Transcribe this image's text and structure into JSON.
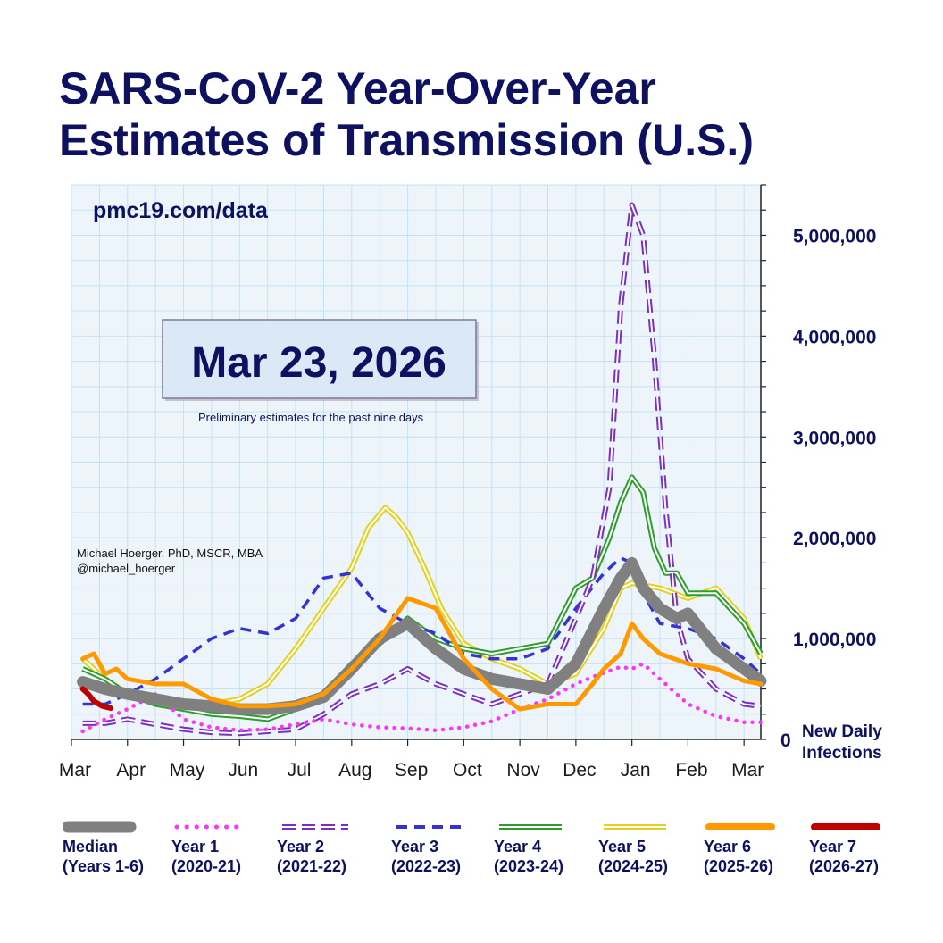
{
  "title": {
    "line1": "SARS-CoV-2 Year-Over-Year",
    "line2": "Estimates of Transmission (U.S.)"
  },
  "source_label": "pmc19.com/data",
  "author": {
    "name": "Michael Hoerger, PhD, MSCR, MBA",
    "handle": "@michael_hoerger"
  },
  "date_box": "Mar 23, 2026",
  "prelim_note": "Preliminary estimates for the past nine days",
  "y_axis_caption": {
    "line1": "New Daily",
    "line2": "Infections"
  },
  "colors": {
    "title": "#0d1160",
    "plot_bg": "#eef5fa",
    "grid": "#c5e1f3",
    "median": "#808080",
    "year1": "#ff33ff",
    "year2": "#7a2fc2",
    "year3": "#3232d8",
    "year4": "#2e9d2e",
    "year5": "#e2d21e",
    "year6": "#ff9900",
    "year7": "#c00000"
  },
  "chart_data": {
    "type": "line",
    "title": "SARS-CoV-2 Year-Over-Year Estimates of Transmission (U.S.)",
    "xlabel": "",
    "ylabel": "New Daily Infections",
    "x_unit": "months since Mar 1",
    "xlim": [
      0,
      12.3
    ],
    "ylim": [
      0,
      5500000
    ],
    "x_ticks": [
      {
        "x": 0,
        "label": "Mar"
      },
      {
        "x": 1,
        "label": "Apr"
      },
      {
        "x": 2,
        "label": "May"
      },
      {
        "x": 3,
        "label": "Jun"
      },
      {
        "x": 4,
        "label": "Jul"
      },
      {
        "x": 5,
        "label": "Aug"
      },
      {
        "x": 6,
        "label": "Sep"
      },
      {
        "x": 7,
        "label": "Oct"
      },
      {
        "x": 8,
        "label": "Nov"
      },
      {
        "x": 9,
        "label": "Dec"
      },
      {
        "x": 10,
        "label": "Jan"
      },
      {
        "x": 11,
        "label": "Feb"
      },
      {
        "x": 12,
        "label": "Mar"
      }
    ],
    "y_ticks": [
      {
        "y": 0,
        "label": "0"
      },
      {
        "y": 1000000,
        "label": "1,000,000"
      },
      {
        "y": 2000000,
        "label": "2,000,000"
      },
      {
        "y": 3000000,
        "label": "3,000,000"
      },
      {
        "y": 4000000,
        "label": "4,000,000"
      },
      {
        "y": 5000000,
        "label": "5,000,000"
      }
    ],
    "series": [
      {
        "key": "year5",
        "name": "Year 5",
        "period": "(2024-25)",
        "x": [
          0.2,
          0.6,
          1.0,
          1.5,
          2.0,
          2.5,
          3.0,
          3.5,
          4.0,
          4.5,
          5.0,
          5.3,
          5.6,
          5.8,
          6.0,
          6.3,
          6.6,
          7.0,
          7.5,
          8.0,
          8.5,
          9.0,
          9.5,
          9.8,
          10.0,
          10.5,
          11.0,
          11.5,
          12.0,
          12.3
        ],
        "y": [
          800000,
          600000,
          450000,
          350000,
          300000,
          350000,
          400000,
          550000,
          900000,
          1300000,
          1700000,
          2100000,
          2300000,
          2200000,
          2050000,
          1700000,
          1300000,
          950000,
          800000,
          700000,
          550000,
          650000,
          1100000,
          1500000,
          1550000,
          1500000,
          1400000,
          1500000,
          1200000,
          800000
        ]
      },
      {
        "key": "year4",
        "name": "Year 4",
        "period": "(2023-24)",
        "x": [
          0.2,
          0.6,
          1.0,
          1.5,
          2.0,
          2.5,
          3.0,
          3.5,
          4.0,
          4.5,
          5.0,
          5.5,
          6.0,
          6.5,
          7.0,
          7.5,
          8.0,
          8.5,
          9.0,
          9.3,
          9.6,
          9.8,
          10.0,
          10.2,
          10.4,
          10.6,
          10.8,
          11.0,
          11.5,
          12.0,
          12.3
        ],
        "y": [
          700000,
          600000,
          450000,
          350000,
          300000,
          250000,
          230000,
          200000,
          300000,
          450000,
          750000,
          950000,
          1200000,
          1000000,
          900000,
          850000,
          900000,
          950000,
          1500000,
          1600000,
          2000000,
          2350000,
          2600000,
          2450000,
          1900000,
          1650000,
          1650000,
          1450000,
          1450000,
          1150000,
          850000
        ]
      },
      {
        "key": "year3",
        "name": "Year 3",
        "period": "(2022-23)",
        "x": [
          0.2,
          0.6,
          1.0,
          1.5,
          2.0,
          2.5,
          3.0,
          3.5,
          4.0,
          4.5,
          5.0,
          5.5,
          6.0,
          6.5,
          7.0,
          7.5,
          8.0,
          8.5,
          9.0,
          9.5,
          9.8,
          10.0,
          10.2,
          10.5,
          11.0,
          11.5,
          12.0,
          12.3
        ],
        "y": [
          350000,
          350000,
          450000,
          600000,
          800000,
          1000000,
          1100000,
          1050000,
          1200000,
          1600000,
          1650000,
          1300000,
          1150000,
          1050000,
          850000,
          800000,
          800000,
          900000,
          1300000,
          1650000,
          1800000,
          1750000,
          1450000,
          1150000,
          1100000,
          1000000,
          800000,
          650000
        ]
      },
      {
        "key": "year2",
        "name": "Year 2",
        "period": "(2021-22)",
        "x": [
          0.2,
          0.6,
          1.0,
          1.5,
          2.0,
          2.5,
          3.0,
          3.5,
          4.0,
          4.5,
          5.0,
          5.5,
          6.0,
          6.5,
          7.0,
          7.5,
          8.0,
          8.5,
          9.0,
          9.3,
          9.6,
          9.8,
          10.0,
          10.2,
          10.4,
          10.6,
          10.8,
          11.0,
          11.5,
          12.0,
          12.3
        ],
        "y": [
          160000,
          160000,
          200000,
          150000,
          100000,
          70000,
          60000,
          80000,
          100000,
          250000,
          450000,
          550000,
          700000,
          550000,
          450000,
          350000,
          450000,
          550000,
          1200000,
          1600000,
          2500000,
          4300000,
          5300000,
          5000000,
          3800000,
          2300000,
          1200000,
          800000,
          500000,
          350000,
          330000
        ]
      },
      {
        "key": "year1",
        "name": "Year 1",
        "period": "(2020-21)",
        "x": [
          0.2,
          0.6,
          1.0,
          1.5,
          2.0,
          2.5,
          3.0,
          3.5,
          4.0,
          4.5,
          5.0,
          5.5,
          6.0,
          6.5,
          7.0,
          7.5,
          8.0,
          8.5,
          9.0,
          9.3,
          9.6,
          9.8,
          10.0,
          10.2,
          10.5,
          11.0,
          11.5,
          12.0,
          12.3
        ],
        "y": [
          80000,
          200000,
          300000,
          450000,
          200000,
          120000,
          90000,
          100000,
          150000,
          200000,
          150000,
          120000,
          110000,
          90000,
          120000,
          180000,
          300000,
          400000,
          550000,
          620000,
          680000,
          720000,
          700000,
          750000,
          600000,
          350000,
          230000,
          170000,
          170000
        ]
      },
      {
        "key": "median",
        "name": "Median",
        "period": "(Years 1-6)",
        "x": [
          0.2,
          0.6,
          1.0,
          1.5,
          2.0,
          2.5,
          3.0,
          3.5,
          4.0,
          4.5,
          5.0,
          5.5,
          6.0,
          6.5,
          7.0,
          7.5,
          8.0,
          8.5,
          9.0,
          9.5,
          9.8,
          10.0,
          10.2,
          10.5,
          10.8,
          11.0,
          11.5,
          12.0,
          12.3
        ],
        "y": [
          570000,
          500000,
          450000,
          400000,
          350000,
          330000,
          300000,
          300000,
          330000,
          420000,
          700000,
          1000000,
          1150000,
          900000,
          700000,
          600000,
          550000,
          500000,
          750000,
          1300000,
          1600000,
          1750000,
          1500000,
          1300000,
          1200000,
          1250000,
          900000,
          700000,
          580000
        ]
      },
      {
        "key": "year6",
        "name": "Year 6",
        "period": "(2025-26)",
        "x": [
          0.2,
          0.4,
          0.6,
          0.8,
          1.0,
          1.5,
          2.0,
          2.5,
          3.0,
          3.5,
          4.0,
          4.5,
          5.0,
          5.5,
          6.0,
          6.5,
          7.0,
          7.5,
          8.0,
          8.5,
          9.0,
          9.3,
          9.5,
          9.8,
          10.0,
          10.2,
          10.5,
          11.0,
          11.5,
          12.0,
          12.3
        ],
        "y": [
          800000,
          850000,
          650000,
          700000,
          600000,
          550000,
          550000,
          400000,
          330000,
          330000,
          350000,
          450000,
          700000,
          1000000,
          1400000,
          1300000,
          800000,
          500000,
          300000,
          350000,
          350000,
          550000,
          700000,
          850000,
          1150000,
          1000000,
          850000,
          750000,
          700000,
          580000,
          550000
        ]
      },
      {
        "key": "year7",
        "name": "Year 7",
        "period": "(2026-27)",
        "x": [
          0.2,
          0.3,
          0.4,
          0.55,
          0.7
        ],
        "y": [
          500000,
          450000,
          380000,
          330000,
          310000
        ]
      }
    ]
  },
  "legend": [
    {
      "key": "median",
      "name": "Median",
      "period": "(Years 1-6)"
    },
    {
      "key": "year1",
      "name": "Year 1",
      "period": "(2020-21)"
    },
    {
      "key": "year2",
      "name": "Year 2",
      "period": "(2021-22)"
    },
    {
      "key": "year3",
      "name": "Year 3",
      "period": "(2022-23)"
    },
    {
      "key": "year4",
      "name": "Year 4",
      "period": "(2023-24)"
    },
    {
      "key": "year5",
      "name": "Year 5",
      "period": "(2024-25)"
    },
    {
      "key": "year6",
      "name": "Year 6",
      "period": "(2025-26)"
    },
    {
      "key": "year7",
      "name": "Year 7",
      "period": "(2026-27)"
    }
  ]
}
